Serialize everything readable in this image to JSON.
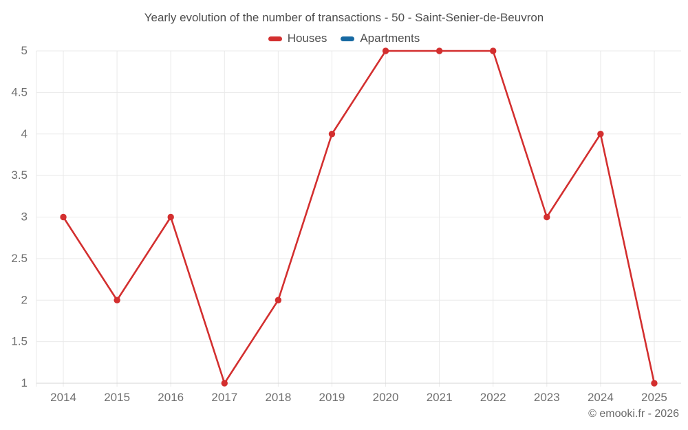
{
  "footer": {
    "copyright": "© emooki.fr - 2026"
  },
  "chart_data": {
    "type": "line",
    "title": "Yearly evolution of the number of transactions - 50 - Saint-Senier-de-Beuvron",
    "categories": [
      "2014",
      "2015",
      "2016",
      "2017",
      "2018",
      "2019",
      "2020",
      "2021",
      "2022",
      "2023",
      "2024",
      "2025"
    ],
    "series": [
      {
        "name": "Houses",
        "color": "#d32f2f",
        "values": [
          3,
          2,
          3,
          1,
          2,
          4,
          5,
          5,
          5,
          3,
          4,
          1
        ]
      },
      {
        "name": "Apartments",
        "color": "#1769a2",
        "values": []
      }
    ],
    "xlabel": "",
    "ylabel": "",
    "ylim": [
      1,
      5
    ],
    "ytick_step": 0.5,
    "yticks": [
      "1",
      "1.5",
      "2",
      "2.5",
      "3",
      "3.5",
      "4",
      "4.5",
      "5"
    ],
    "grid": true,
    "legend_position": "top",
    "marker": "circle",
    "styles": {
      "grid_color": "#e9e9e9",
      "axis_line_color": "#d4d4d4",
      "tick_label_color": "#707070",
      "title_color": "#4e4e4e",
      "background": "#ffffff"
    }
  }
}
